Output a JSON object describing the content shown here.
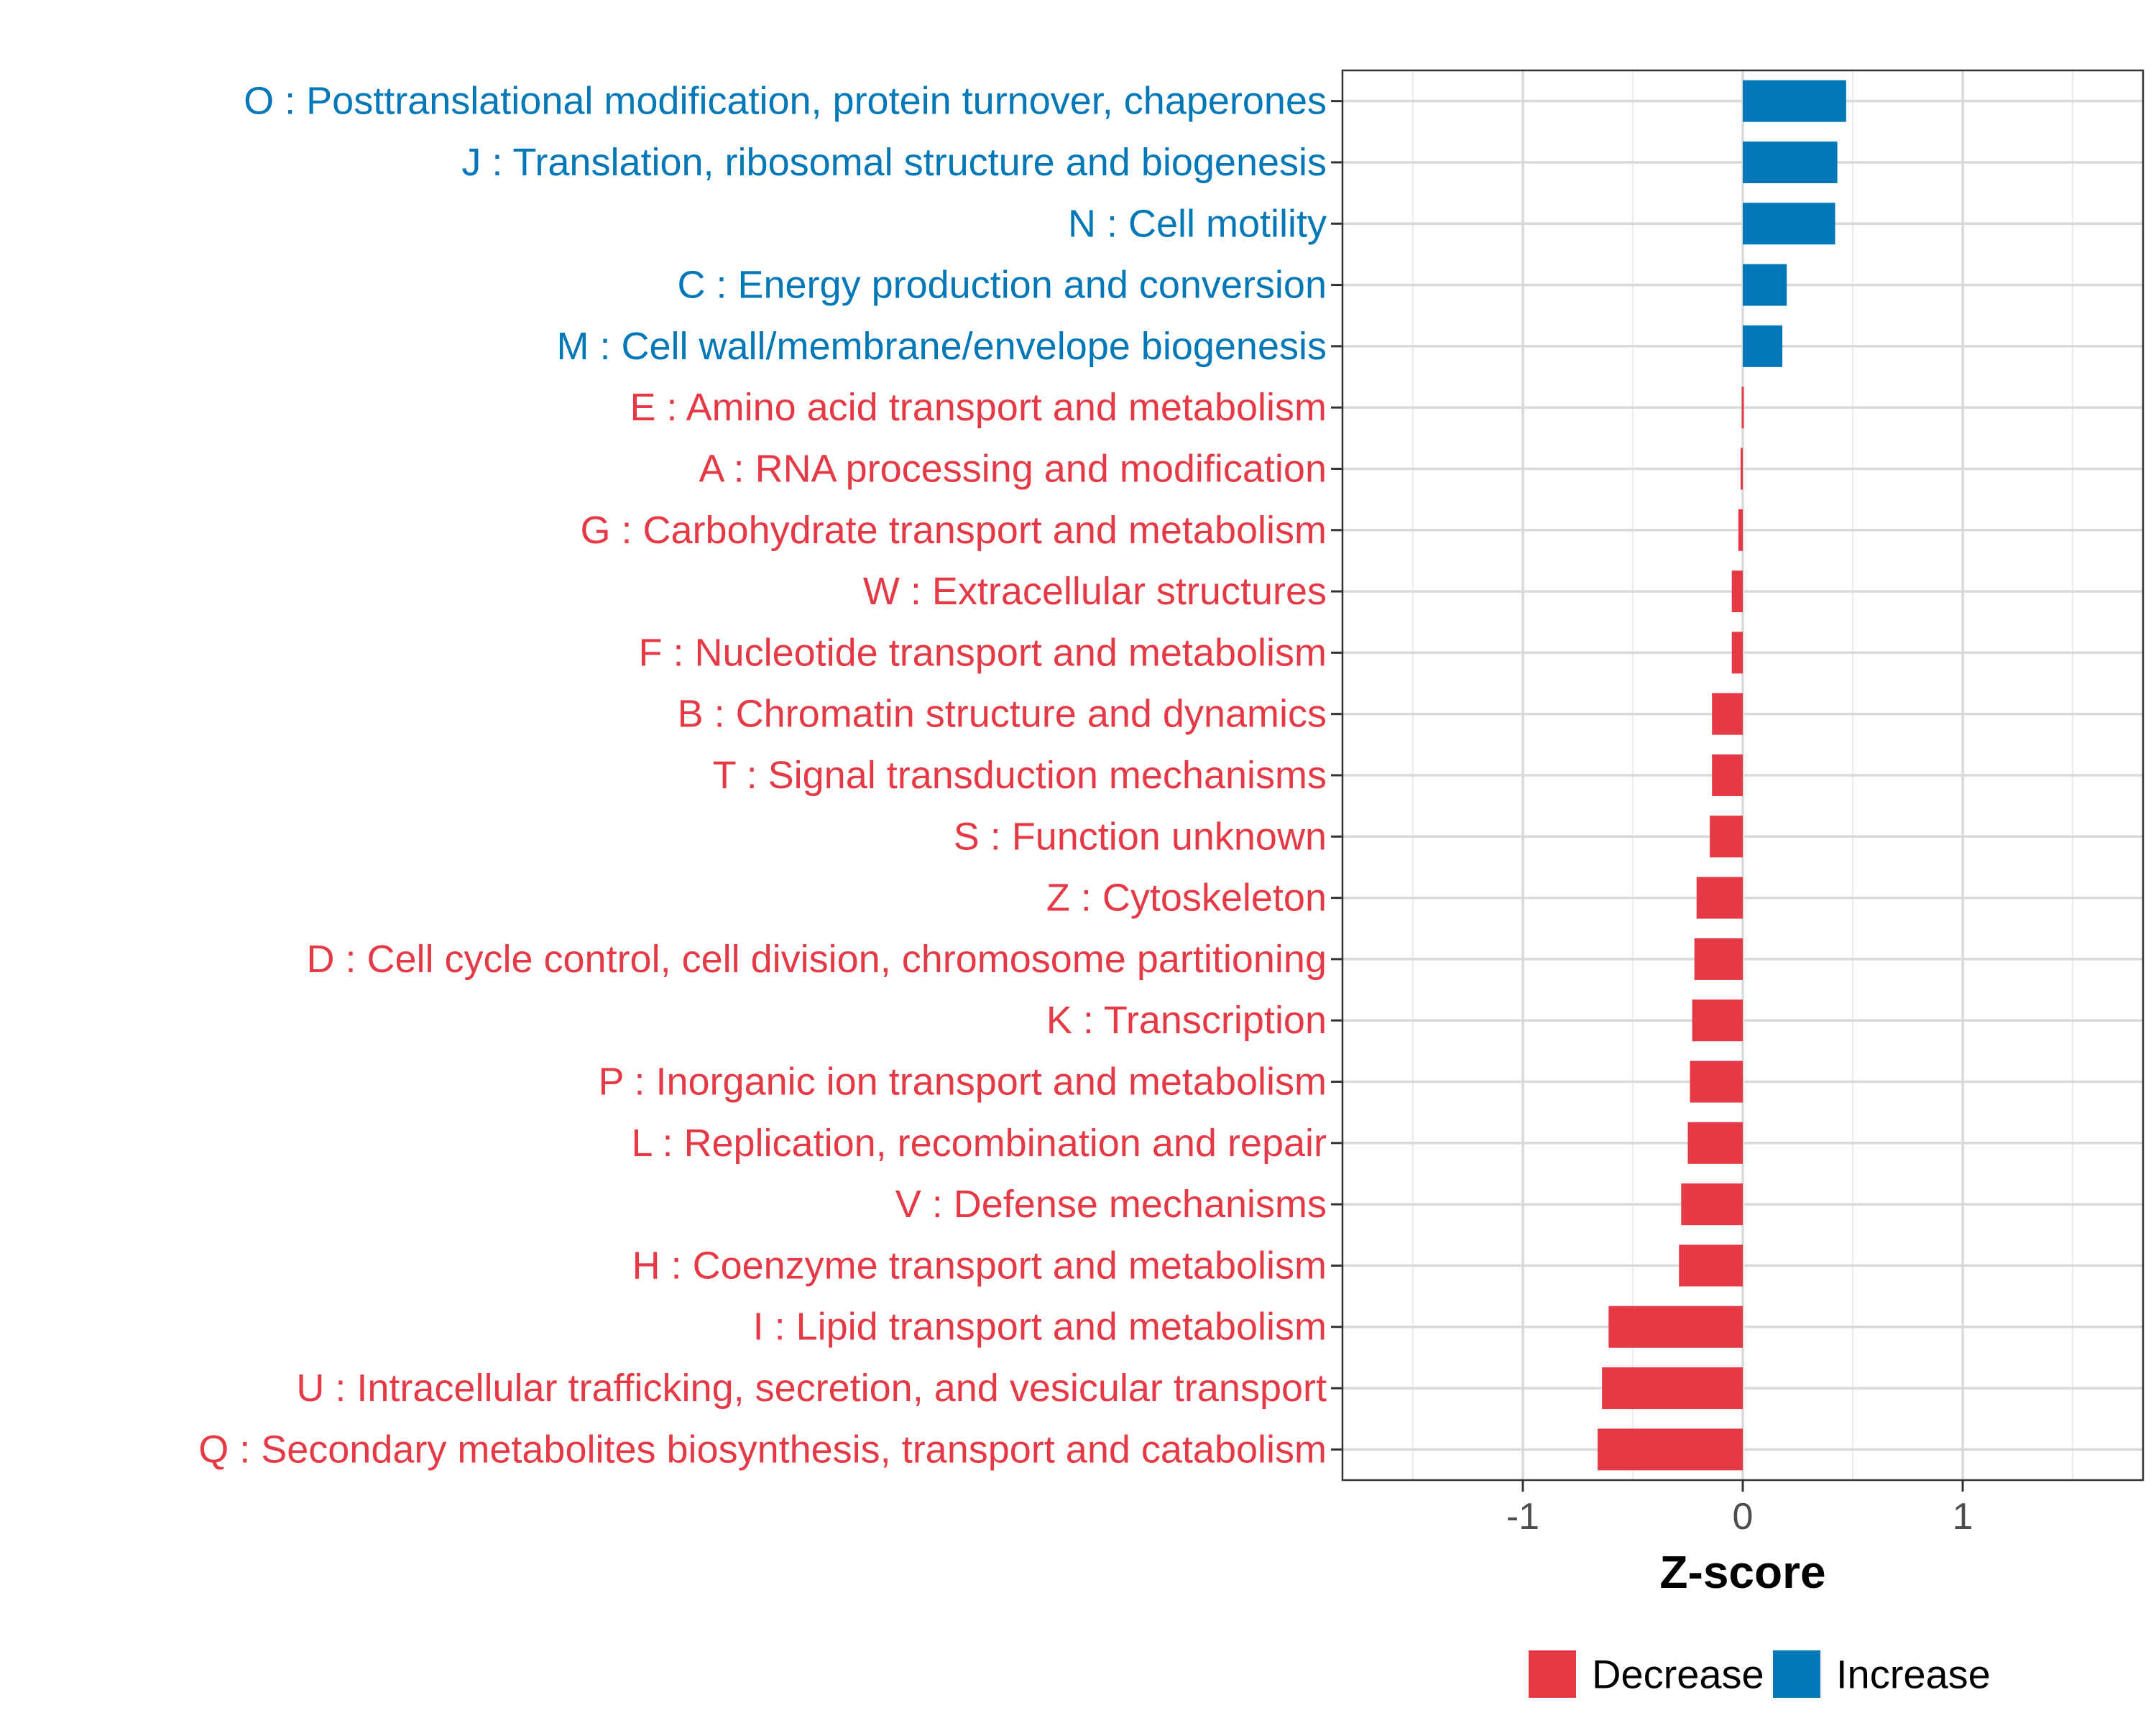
{
  "chart_data": {
    "type": "bar",
    "orientation": "horizontal",
    "title": "",
    "xlabel": "Z-score",
    "ylabel": "",
    "xlim": [
      -1.82,
      1.82
    ],
    "xticks": [
      -1,
      0,
      1
    ],
    "xtick_labels": [
      "-1",
      "0",
      "1"
    ],
    "grid": true,
    "legend_position": "bottom",
    "colors": {
      "Decrease": "#E63946",
      "Increase": "#0077B6"
    },
    "legend": [
      {
        "name": "Decrease",
        "color": "#E63946"
      },
      {
        "name": "Increase",
        "color": "#0077B6"
      }
    ],
    "categories": [
      "O : Posttranslational modification, protein turnover, chaperones",
      "J : Translation, ribosomal structure and biogenesis",
      "N : Cell motility",
      "C : Energy production and conversion",
      "M : Cell wall/membrane/envelope biogenesis",
      "E : Amino acid transport and metabolism",
      "A : RNA processing and modification",
      "G : Carbohydrate transport and metabolism",
      "W : Extracellular structures",
      "F : Nucleotide transport and metabolism",
      "B : Chromatin structure and dynamics",
      "T : Signal transduction mechanisms",
      "S : Function unknown",
      "Z : Cytoskeleton",
      "D : Cell cycle control, cell division, chromosome partitioning",
      "K : Transcription",
      "P : Inorganic ion transport and metabolism",
      "L : Replication, recombination and repair",
      "V : Defense mechanisms",
      "H : Coenzyme transport and metabolism",
      "I : Lipid transport and metabolism",
      "U : Intracellular trafficking, secretion, and vesicular transport",
      "Q : Secondary metabolites biosynthesis, transport and catabolism"
    ],
    "values": [
      0.47,
      0.43,
      0.42,
      0.2,
      0.18,
      -0.005,
      -0.01,
      -0.02,
      -0.05,
      -0.05,
      -0.14,
      -0.14,
      -0.15,
      -0.21,
      -0.22,
      -0.23,
      -0.24,
      -0.25,
      -0.28,
      -0.29,
      -0.61,
      -0.64,
      -0.66
    ],
    "groups": [
      "Increase",
      "Increase",
      "Increase",
      "Increase",
      "Increase",
      "Decrease",
      "Decrease",
      "Decrease",
      "Decrease",
      "Decrease",
      "Decrease",
      "Decrease",
      "Decrease",
      "Decrease",
      "Decrease",
      "Decrease",
      "Decrease",
      "Decrease",
      "Decrease",
      "Decrease",
      "Decrease",
      "Decrease",
      "Decrease"
    ]
  }
}
